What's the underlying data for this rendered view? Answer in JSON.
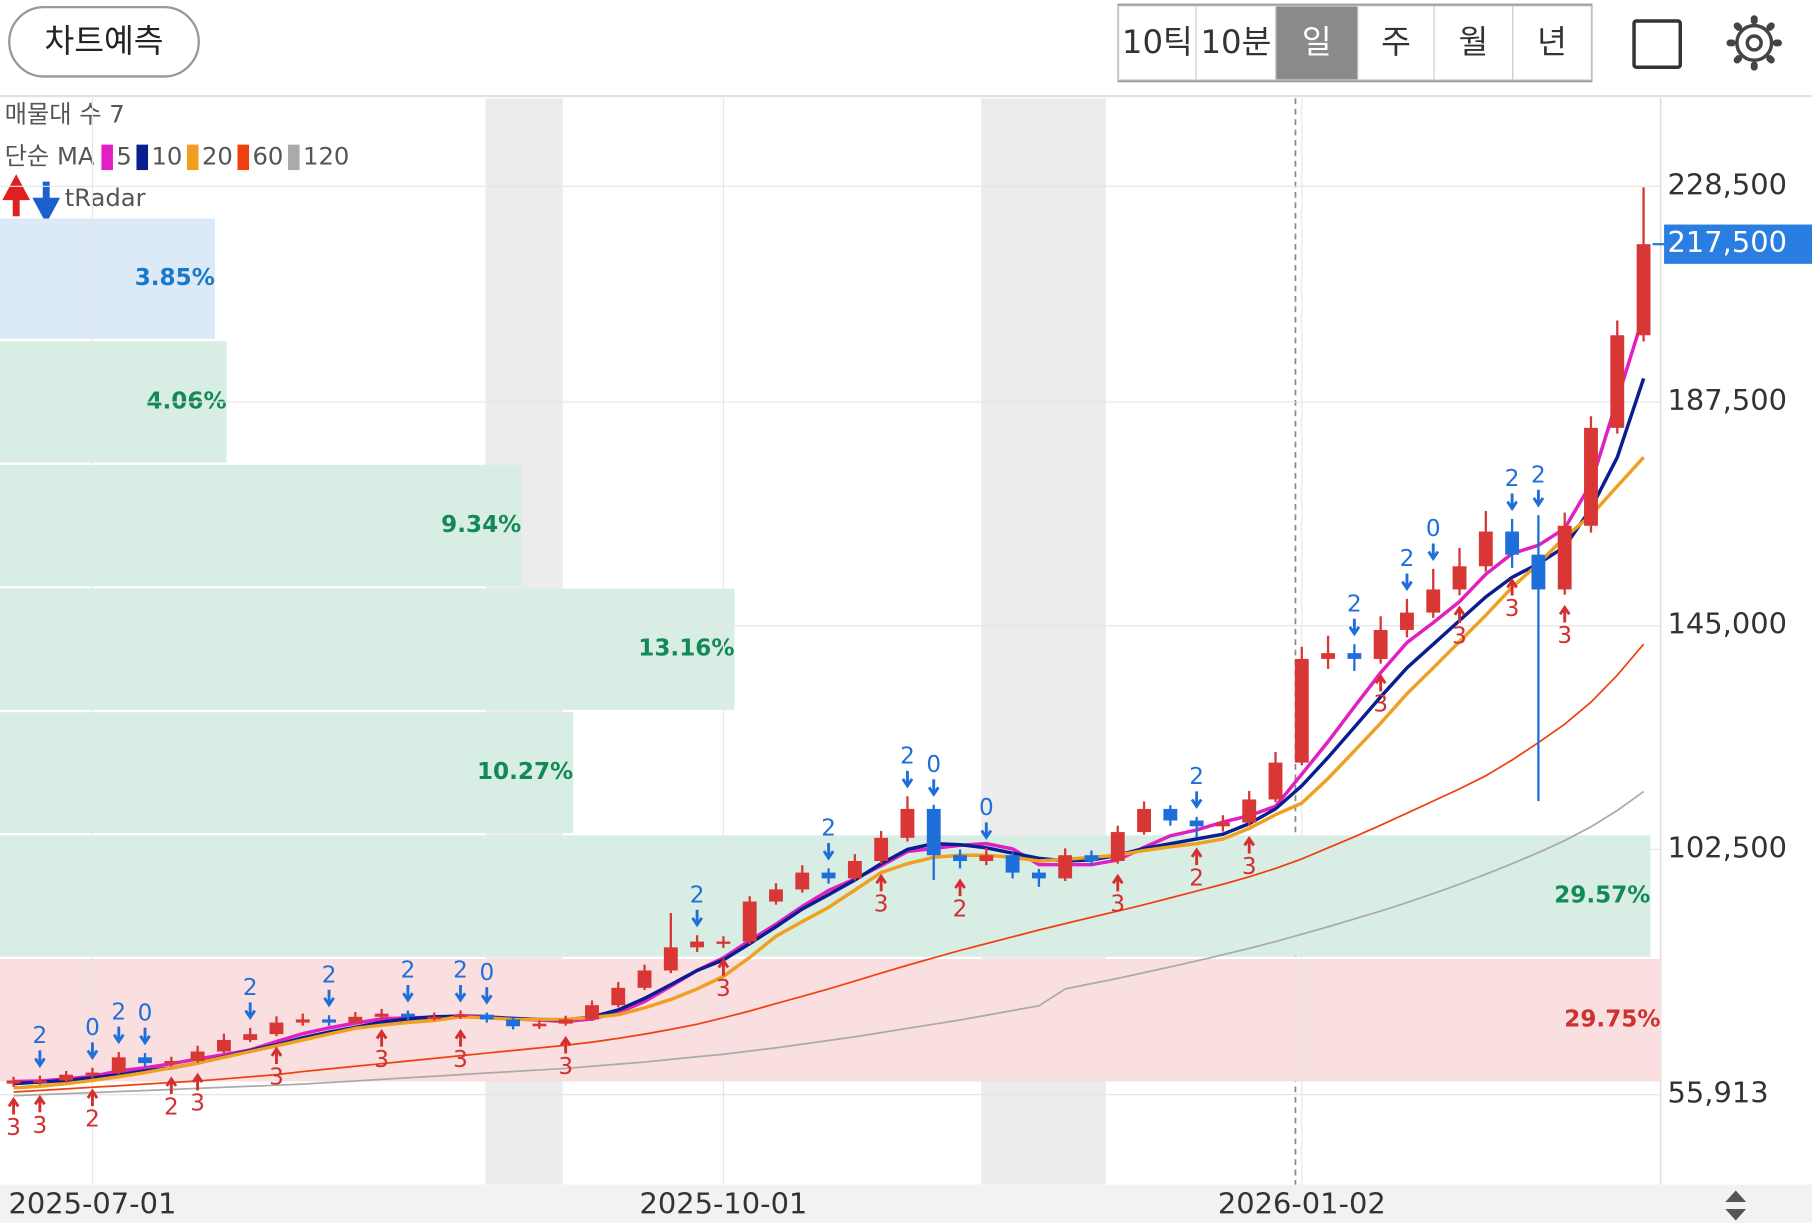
{
  "header": {
    "button": "차트예측",
    "periods": [
      "10틱",
      "10분",
      "일",
      "주",
      "월",
      "년"
    ],
    "selected": 2
  },
  "chart_data": {
    "type": "candlestick",
    "indicators": {
      "profile_label": "매물대 수 7",
      "ma_label": "단순 MA",
      "radar_label": "tRadar"
    },
    "categories": [
      null,
      null,
      null,
      "2025-07-01",
      null,
      null,
      null,
      null,
      null,
      null,
      null,
      null,
      null,
      null,
      null,
      null,
      null,
      null,
      null,
      null,
      null,
      null,
      null,
      null,
      null,
      null,
      null,
      "2025-10-01",
      null,
      null,
      null,
      null,
      null,
      null,
      null,
      null,
      null,
      null,
      null,
      null,
      null,
      null,
      null,
      null,
      null,
      null,
      null,
      null,
      null,
      "2026-01-02",
      null,
      null,
      null,
      null,
      null,
      null,
      null,
      null,
      null,
      null,
      null,
      null,
      null
    ],
    "open": [
      58000,
      58600,
      58600,
      59700,
      60100,
      63000,
      61900,
      62300,
      64100,
      66300,
      67400,
      69600,
      70200,
      69600,
      70700,
      71300,
      70700,
      70700,
      71100,
      70200,
      68900,
      69400,
      70200,
      72900,
      76200,
      79500,
      83900,
      85000,
      85000,
      92600,
      94900,
      98100,
      97000,
      100300,
      104700,
      110200,
      101400,
      100300,
      101400,
      98100,
      97000,
      101400,
      100300,
      105800,
      110200,
      108000,
      106900,
      107600,
      112000,
      119000,
      138700,
      139800,
      138700,
      144200,
      147500,
      151900,
      156300,
      162900,
      158500,
      151900,
      164000,
      182600,
      200200
    ],
    "high": [
      59300,
      59500,
      60400,
      61000,
      64000,
      63800,
      63100,
      65200,
      67500,
      68600,
      70800,
      71300,
      71000,
      71600,
      72200,
      71900,
      71500,
      71900,
      71500,
      70500,
      70000,
      70900,
      73800,
      77300,
      80600,
      90400,
      86200,
      86000,
      93600,
      96100,
      99500,
      98900,
      101600,
      106000,
      112600,
      111000,
      102500,
      102800,
      101900,
      98800,
      102700,
      102300,
      107000,
      111600,
      110900,
      108700,
      109000,
      113600,
      121000,
      141000,
      143100,
      141500,
      146800,
      150100,
      155800,
      159800,
      166800,
      165300,
      166000,
      166500,
      184800,
      203000,
      228300
    ],
    "low": [
      57400,
      57800,
      58200,
      59000,
      59800,
      61200,
      61300,
      62000,
      63800,
      65900,
      67000,
      69000,
      69000,
      69200,
      70300,
      70100,
      70000,
      70300,
      69600,
      68300,
      68400,
      69000,
      69900,
      72500,
      75800,
      79000,
      83000,
      83800,
      84500,
      92000,
      94300,
      96000,
      96600,
      99800,
      104000,
      96700,
      98900,
      99500,
      97000,
      95400,
      96500,
      99400,
      99800,
      105300,
      107000,
      104800,
      105900,
      107000,
      111500,
      118500,
      136800,
      136400,
      137800,
      142800,
      146500,
      150800,
      155300,
      156000,
      111700,
      150900,
      162700,
      181500,
      199000
    ],
    "close": [
      58600,
      58600,
      59700,
      60100,
      63000,
      61900,
      62300,
      64100,
      66300,
      67400,
      69600,
      70200,
      69600,
      70700,
      71300,
      70700,
      70700,
      71100,
      70200,
      68900,
      69400,
      70200,
      72900,
      76200,
      79500,
      83900,
      85000,
      85000,
      92600,
      94900,
      98100,
      97000,
      100300,
      104700,
      110200,
      101400,
      100300,
      101400,
      98100,
      97000,
      101400,
      100300,
      105800,
      110200,
      108000,
      106900,
      107600,
      112000,
      119000,
      138700,
      139800,
      138700,
      144200,
      147500,
      151900,
      156300,
      162900,
      158500,
      151900,
      164000,
      182600,
      200200,
      217500
    ],
    "current_price_label": "217,500",
    "up_color": "#d93636",
    "down_color": "#1e6fd9",
    "series": [
      {
        "name": "5",
        "color": "#e020c0",
        "values": [
          58400,
          58500,
          58900,
          59400,
          60400,
          61000,
          61800,
          62700,
          63500,
          64400,
          66000,
          67500,
          68600,
          69500,
          70300,
          70500,
          70600,
          70900,
          70800,
          70300,
          70100,
          69800,
          70300,
          71500,
          73600,
          76500,
          79500,
          81900,
          85200,
          88300,
          91700,
          94700,
          96900,
          99400,
          102100,
          102700,
          103300,
          103600,
          102600,
          99600,
          99600,
          99600,
          100500,
          102900,
          105100,
          106200,
          107700,
          108900,
          110700,
          116800,
          123000,
          129600,
          136100,
          141800,
          145600,
          149600,
          154800,
          158700,
          160300,
          163500,
          172000,
          188000,
          204000
        ]
      },
      {
        "name": "10",
        "color": "#0a1f8f",
        "values": [
          58000,
          58300,
          58600,
          59100,
          59700,
          60400,
          61000,
          61900,
          63100,
          64300,
          65400,
          66700,
          67800,
          68700,
          69700,
          70300,
          70700,
          70800,
          70600,
          70400,
          70200,
          70100,
          70700,
          72000,
          74200,
          76800,
          79500,
          81500,
          84600,
          87800,
          91200,
          93900,
          96700,
          99800,
          102500,
          103600,
          103400,
          102800,
          101800,
          100800,
          100300,
          100500,
          101400,
          102700,
          103600,
          104500,
          105400,
          107400,
          110200,
          114600,
          120000,
          125700,
          131500,
          137000,
          141500,
          146000,
          150500,
          154200,
          156800,
          160000,
          167300,
          177000,
          192000
        ]
      },
      {
        "name": "20",
        "color": "#f0a020",
        "values": [
          57200,
          57500,
          58000,
          58600,
          59300,
          60100,
          61000,
          61900,
          63000,
          64100,
          65200,
          66300,
          67400,
          68500,
          69100,
          69600,
          70000,
          70700,
          70500,
          70200,
          70200,
          70200,
          70600,
          71100,
          72400,
          74000,
          76000,
          78400,
          82000,
          86000,
          88800,
          91500,
          94800,
          98100,
          99800,
          101000,
          101400,
          101400,
          101000,
          100300,
          100600,
          101000,
          101400,
          102300,
          103000,
          103600,
          104500,
          106500,
          109100,
          111300,
          116000,
          121200,
          126500,
          132100,
          137000,
          142000,
          147000,
          152300,
          156800,
          161800,
          166000,
          171500,
          177000
        ]
      },
      {
        "name": "60",
        "color": "#f04010",
        "values": [
          56400,
          56700,
          57000,
          57300,
          57600,
          57900,
          58200,
          58500,
          58900,
          59300,
          59700,
          60300,
          60800,
          61300,
          61800,
          62300,
          62800,
          63300,
          63800,
          64300,
          64800,
          65300,
          65900,
          66600,
          67400,
          68300,
          69300,
          70500,
          71800,
          73200,
          74600,
          76000,
          77500,
          79000,
          80500,
          81900,
          83300,
          84600,
          85900,
          87200,
          88400,
          89600,
          90800,
          92000,
          93300,
          94600,
          95900,
          97300,
          98900,
          100700,
          102800,
          104900,
          107100,
          109400,
          111700,
          114000,
          116500,
          119500,
          122800,
          126300,
          130500,
          135600,
          141500
        ]
      },
      {
        "name": "120",
        "color": "#aaaaaa",
        "values": [
          55700,
          55900,
          56100,
          56300,
          56500,
          56700,
          56900,
          57100,
          57300,
          57500,
          57700,
          57900,
          58200,
          58500,
          58800,
          59100,
          59400,
          59700,
          60000,
          60300,
          60600,
          60900,
          61300,
          61700,
          62100,
          62600,
          63100,
          63600,
          64200,
          64800,
          65500,
          66200,
          66900,
          67700,
          68500,
          69300,
          70100,
          71000,
          71900,
          72800,
          76000,
          77000,
          78000,
          79100,
          80200,
          81300,
          82500,
          83700,
          85000,
          86400,
          87800,
          89300,
          90800,
          92400,
          94100,
          95900,
          97800,
          99800,
          101900,
          104200,
          106800,
          109900,
          113500
        ]
      }
    ],
    "volume_profile": {
      "bins": [
        58200,
        81900,
        105400,
        128800,
        152300,
        175800,
        199300,
        222600
      ],
      "values": [
        29.75,
        29.57,
        10.27,
        13.16,
        9.34,
        4.06,
        3.85
      ],
      "value_labels": [
        "29.75%",
        "29.57%",
        "10.27%",
        "13.16%",
        "9.34%",
        "4.06%",
        "3.85%"
      ],
      "colors": [
        "#f9dfe0",
        "#d8eee5",
        "#d8eee5",
        "#d8eee5",
        "#d8eee5",
        "#d8eee5",
        "#dceaf8"
      ],
      "label_colors": [
        "#d03030",
        "#138a55",
        "#138a55",
        "#138a55",
        "#138a55",
        "#138a55",
        "#1a78c8"
      ]
    },
    "annotations": [
      {
        "index": 0,
        "text": "3",
        "side": "below"
      },
      {
        "index": 1,
        "text": "3",
        "side": "below"
      },
      {
        "index": 1,
        "text": "2",
        "side": "above"
      },
      {
        "index": 3,
        "text": "0",
        "side": "above"
      },
      {
        "index": 3,
        "text": "2",
        "side": "below"
      },
      {
        "index": 4,
        "text": "2",
        "side": "above"
      },
      {
        "index": 5,
        "text": "0",
        "side": "above"
      },
      {
        "index": 6,
        "text": "2",
        "side": "below"
      },
      {
        "index": 7,
        "text": "3",
        "side": "below"
      },
      {
        "index": 9,
        "text": "2",
        "side": "above"
      },
      {
        "index": 10,
        "text": "3",
        "side": "below"
      },
      {
        "index": 12,
        "text": "2",
        "side": "above"
      },
      {
        "index": 14,
        "text": "3",
        "side": "below"
      },
      {
        "index": 15,
        "text": "2",
        "side": "above"
      },
      {
        "index": 17,
        "text": "3",
        "side": "below"
      },
      {
        "index": 17,
        "text": "2",
        "side": "above"
      },
      {
        "index": 18,
        "text": "0",
        "side": "above"
      },
      {
        "index": 21,
        "text": "3",
        "side": "below"
      },
      {
        "index": 26,
        "text": "2",
        "side": "above"
      },
      {
        "index": 27,
        "text": "3",
        "side": "below"
      },
      {
        "index": 31,
        "text": "2",
        "side": "above"
      },
      {
        "index": 33,
        "text": "3",
        "side": "below"
      },
      {
        "index": 34,
        "text": "2",
        "side": "above"
      },
      {
        "index": 35,
        "text": "0",
        "side": "above"
      },
      {
        "index": 36,
        "text": "2",
        "side": "below"
      },
      {
        "index": 37,
        "text": "0",
        "side": "above"
      },
      {
        "index": 42,
        "text": "3",
        "side": "below"
      },
      {
        "index": 45,
        "text": "2",
        "side": "above"
      },
      {
        "index": 45,
        "text": "2",
        "side": "below"
      },
      {
        "index": 47,
        "text": "3",
        "side": "below"
      },
      {
        "index": 51,
        "text": "2",
        "side": "above"
      },
      {
        "index": 52,
        "text": "3",
        "side": "below"
      },
      {
        "index": 53,
        "text": "2",
        "side": "above"
      },
      {
        "index": 54,
        "text": "0",
        "side": "above"
      },
      {
        "index": 55,
        "text": "3",
        "side": "below"
      },
      {
        "index": 57,
        "text": "2",
        "side": "above"
      },
      {
        "index": 57,
        "text": "3",
        "side": "below"
      },
      {
        "index": 58,
        "text": "2",
        "side": "above"
      },
      {
        "index": 59,
        "text": "3",
        "side": "below"
      }
    ],
    "annotation_colors": {
      "above": "#1e6fd9",
      "below": "#d32f2f"
    },
    "ylim": [
      38800,
      245200
    ],
    "yticks": [
      {
        "value": 55913,
        "label": "55,913"
      },
      {
        "value": 102500,
        "label": "102,500"
      },
      {
        "value": 145000,
        "label": "145,000"
      },
      {
        "value": 187500,
        "label": "187,500"
      },
      {
        "value": 228500,
        "label": "228,500"
      }
    ],
    "grid": true
  }
}
